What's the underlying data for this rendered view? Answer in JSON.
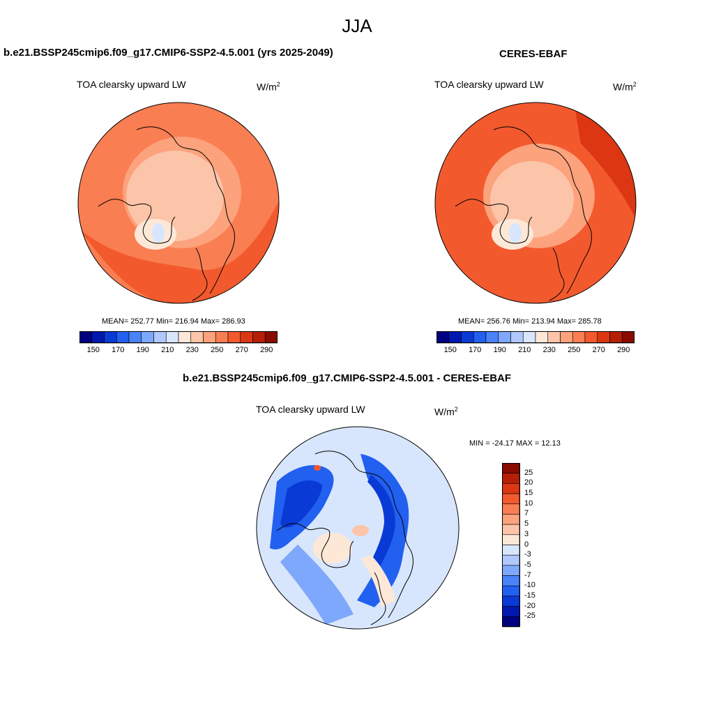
{
  "figure": {
    "season": "JJA"
  },
  "panels": [
    {
      "title": "b.e21.BSSP245cmip6.f09_g17.CMIP6-SSP2-4.5.001 (yrs 2025-2049)",
      "variable": "TOA clearsky upward LW",
      "units": "W/m",
      "units_exp": "2",
      "stats": "MEAN= 252.77  Min= 216.94  Max= 286.93"
    },
    {
      "title": "CERES-EBAF",
      "variable": "TOA clearsky upward LW",
      "units": "W/m",
      "units_exp": "2",
      "stats": "MEAN= 256.76  Min= 213.94  Max= 285.78"
    },
    {
      "title": "b.e21.BSSP245cmip6.f09_g17.CMIP6-SSP2-4.5.001 - CERES-EBAF",
      "variable": "TOA clearsky upward LW",
      "units": "W/m",
      "units_exp": "2",
      "stats": "MIN = -24.17 MAX =  12.13"
    }
  ],
  "abs_colorbar": {
    "colors": [
      "#000080",
      "#0018b0",
      "#0a3ad6",
      "#2260f0",
      "#4a82f8",
      "#7ea8fb",
      "#b0c8fc",
      "#d8e6fd",
      "#fde8d8",
      "#fcc4a8",
      "#fca27c",
      "#f97e52",
      "#f25a2e",
      "#dc3612",
      "#b61e06",
      "#8a0b00"
    ],
    "labels": [
      "150",
      "170",
      "190",
      "210",
      "230",
      "250",
      "270",
      "290"
    ]
  },
  "diff_colorbar": {
    "colors": [
      "#8a0b00",
      "#b61e06",
      "#dc3612",
      "#f25a2e",
      "#f97e52",
      "#fca27c",
      "#fcc4a8",
      "#fde8d8",
      "#d8e6fd",
      "#b0c8fc",
      "#7ea8fb",
      "#4a82f8",
      "#2260f0",
      "#0a3ad6",
      "#0018b0",
      "#000080"
    ],
    "labels": [
      "25",
      "20",
      "15",
      "10",
      "7",
      "5",
      "3",
      "0",
      "-3",
      "-5",
      "-7",
      "-10",
      "-15",
      "-20",
      "-25"
    ]
  }
}
